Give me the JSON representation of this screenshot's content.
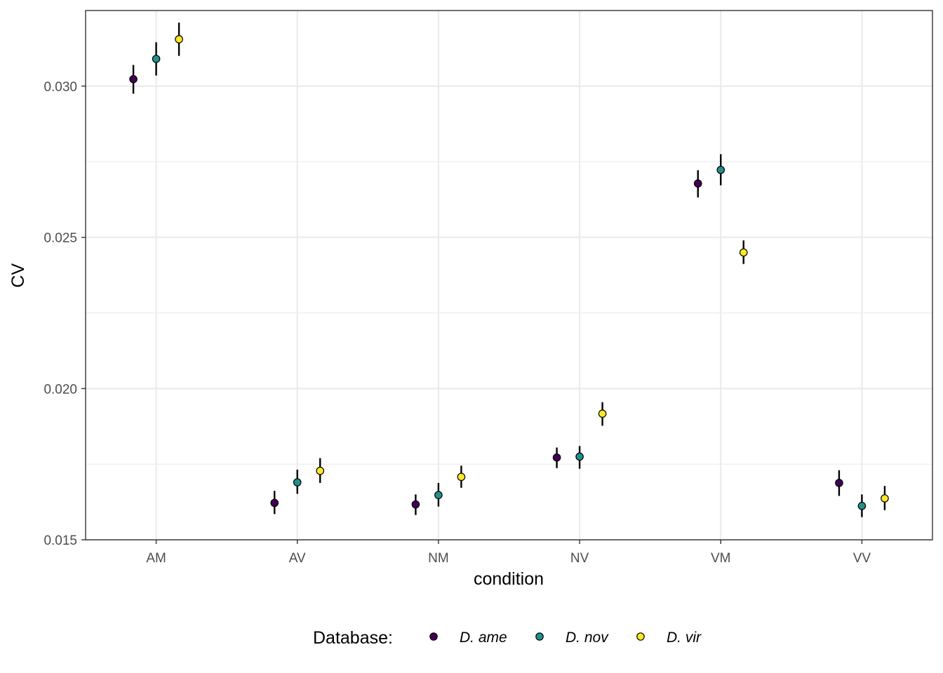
{
  "chart_data": {
    "type": "scatter",
    "title": "",
    "xlabel": "condition",
    "ylabel": "CV",
    "categories": [
      "AM",
      "AV",
      "NM",
      "NV",
      "VM",
      "VV"
    ],
    "ylim": [
      0.015,
      0.0325
    ],
    "yticks": [
      0.015,
      0.02,
      0.025,
      0.03
    ],
    "ytick_labels": [
      "0.015",
      "0.020",
      "0.025",
      "0.030"
    ],
    "grid": true,
    "legend": {
      "title": "Database:",
      "position": "bottom"
    },
    "series": [
      {
        "name": "D. ame",
        "color": "#440154",
        "values": [
          0.03023,
          0.01622,
          0.01617,
          0.01772,
          0.02678,
          0.01688
        ],
        "err_low": [
          0.02975,
          0.01585,
          0.01582,
          0.01737,
          0.02632,
          0.01645
        ],
        "err_high": [
          0.0307,
          0.01662,
          0.0165,
          0.01805,
          0.02722,
          0.0173
        ]
      },
      {
        "name": "D. nov",
        "color": "#21908C",
        "values": [
          0.0309,
          0.0169,
          0.01648,
          0.01775,
          0.02723,
          0.01612
        ],
        "err_low": [
          0.03035,
          0.01652,
          0.0161,
          0.01735,
          0.02672,
          0.01575
        ],
        "err_high": [
          0.03145,
          0.01732,
          0.01688,
          0.0181,
          0.02775,
          0.0165
        ]
      },
      {
        "name": "D. vir",
        "color": "#FDE725",
        "values": [
          0.03155,
          0.01728,
          0.01708,
          0.01917,
          0.0245,
          0.01637
        ],
        "err_low": [
          0.031,
          0.01688,
          0.01672,
          0.01877,
          0.02412,
          0.01598
        ],
        "err_high": [
          0.0321,
          0.0177,
          0.01745,
          0.01955,
          0.0249,
          0.01678
        ]
      }
    ]
  }
}
